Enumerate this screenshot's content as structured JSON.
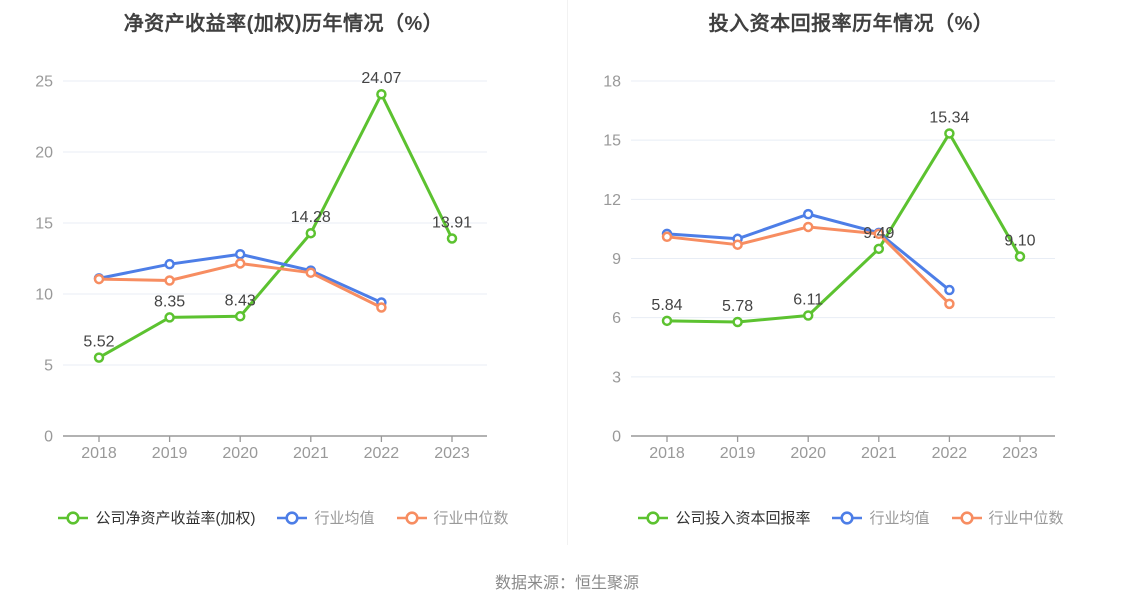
{
  "footer": "数据来源：恒生聚源",
  "colors": {
    "company": "#5cc230",
    "industry_avg": "#4d7ee7",
    "industry_median": "#f78d61",
    "grid": "#e8edf5",
    "axis": "#999999",
    "tick_label": "#999999",
    "value_label": "#444444",
    "title": "#404040",
    "legend_company_text": "#333333",
    "legend_muted": "#999999",
    "marker_fill": "#ffffff"
  },
  "chart_data": [
    {
      "type": "line",
      "title": "净资产收益率(加权)历年情况（%）",
      "xlabel": "",
      "ylabel": "",
      "categories": [
        "2018",
        "2019",
        "2020",
        "2021",
        "2022",
        "2023"
      ],
      "y_ticks": [
        0,
        5,
        10,
        15,
        20,
        25
      ],
      "ylim": [
        0,
        25
      ],
      "grid": true,
      "legend_position": "bottom",
      "series": [
        {
          "name": "公司净资产收益率(加权)",
          "role": "company",
          "values": [
            5.52,
            8.35,
            8.43,
            14.28,
            24.07,
            13.91
          ],
          "labels": [
            "5.52",
            "8.35",
            "8.43",
            "14.28",
            "24.07",
            "13.91"
          ],
          "show_labels": true
        },
        {
          "name": "行业均值",
          "role": "industry_avg",
          "values": [
            11.1,
            12.1,
            12.8,
            11.65,
            9.4,
            null
          ],
          "labels": [],
          "show_labels": false
        },
        {
          "name": "行业中位数",
          "role": "industry_median",
          "values": [
            11.05,
            10.95,
            12.15,
            11.5,
            9.05,
            null
          ],
          "labels": [],
          "show_labels": false
        }
      ]
    },
    {
      "type": "line",
      "title": "投入资本回报率历年情况（%）",
      "xlabel": "",
      "ylabel": "",
      "categories": [
        "2018",
        "2019",
        "2020",
        "2021",
        "2022",
        "2023"
      ],
      "y_ticks": [
        0,
        3,
        6,
        9,
        12,
        15,
        18
      ],
      "ylim": [
        0,
        18
      ],
      "grid": true,
      "legend_position": "bottom",
      "series": [
        {
          "name": "公司投入资本回报率",
          "role": "company",
          "values": [
            5.84,
            5.78,
            6.11,
            9.49,
            15.34,
            9.1
          ],
          "labels": [
            "5.84",
            "5.78",
            "6.11",
            "9.49",
            "15.34",
            "9.10"
          ],
          "show_labels": true
        },
        {
          "name": "行业均值",
          "role": "industry_avg",
          "values": [
            10.25,
            10.0,
            11.25,
            10.3,
            7.4,
            null
          ],
          "labels": [],
          "show_labels": false
        },
        {
          "name": "行业中位数",
          "role": "industry_median",
          "values": [
            10.1,
            9.7,
            10.6,
            10.25,
            6.7,
            null
          ],
          "labels": [],
          "show_labels": false
        }
      ]
    }
  ]
}
